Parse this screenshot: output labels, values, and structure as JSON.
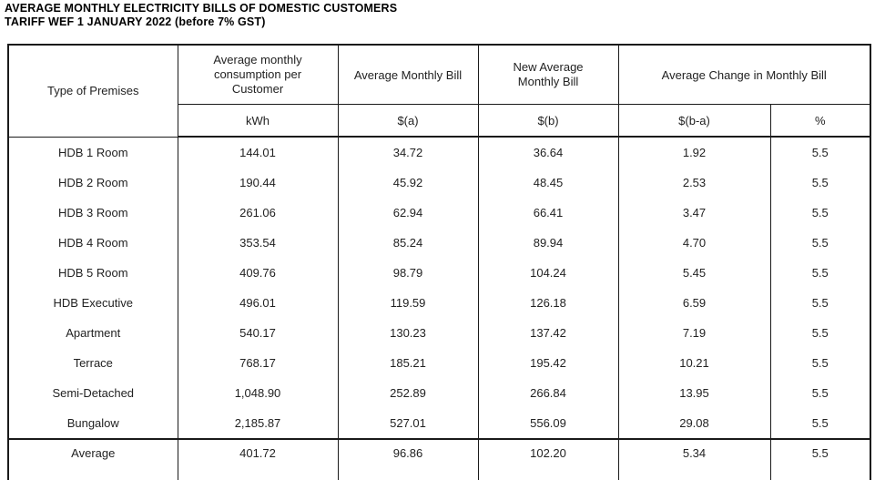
{
  "title": {
    "line1": "AVERAGE MONTHLY ELECTRICITY BILLS OF DOMESTIC CUSTOMERS",
    "line2": "TARIFF WEF 1 JANUARY 2022 (before 7% GST)"
  },
  "table": {
    "headers": [
      "Type of Premises",
      "Average monthly consumption per Customer",
      "Average Monthly Bill",
      "New Average Monthly Bill",
      "Average Change in Monthly Bill"
    ],
    "units": [
      "kWh",
      "$(a)",
      "$(b)",
      "$(b-a)",
      "%"
    ],
    "rows": [
      [
        "HDB 1 Room",
        "144.01",
        "34.72",
        "36.64",
        "1.92",
        "5.5"
      ],
      [
        "HDB 2 Room",
        "190.44",
        "45.92",
        "48.45",
        "2.53",
        "5.5"
      ],
      [
        "HDB 3 Room",
        "261.06",
        "62.94",
        "66.41",
        "3.47",
        "5.5"
      ],
      [
        "HDB 4 Room",
        "353.54",
        "85.24",
        "89.94",
        "4.70",
        "5.5"
      ],
      [
        "HDB 5 Room",
        "409.76",
        "98.79",
        "104.24",
        "5.45",
        "5.5"
      ],
      [
        "HDB Executive",
        "496.01",
        "119.59",
        "126.18",
        "6.59",
        "5.5"
      ],
      [
        "Apartment",
        "540.17",
        "130.23",
        "137.42",
        "7.19",
        "5.5"
      ],
      [
        "Terrace",
        "768.17",
        "185.21",
        "195.42",
        "10.21",
        "5.5"
      ],
      [
        "Semi-Detached",
        "1,048.90",
        "252.89",
        "266.84",
        "13.95",
        "5.5"
      ],
      [
        "Bungalow",
        "2,185.87",
        "527.01",
        "556.09",
        "29.08",
        "5.5"
      ]
    ],
    "summary_row": [
      "Average",
      "401.72",
      "96.86",
      "102.20",
      "5.34",
      "5.5"
    ]
  }
}
